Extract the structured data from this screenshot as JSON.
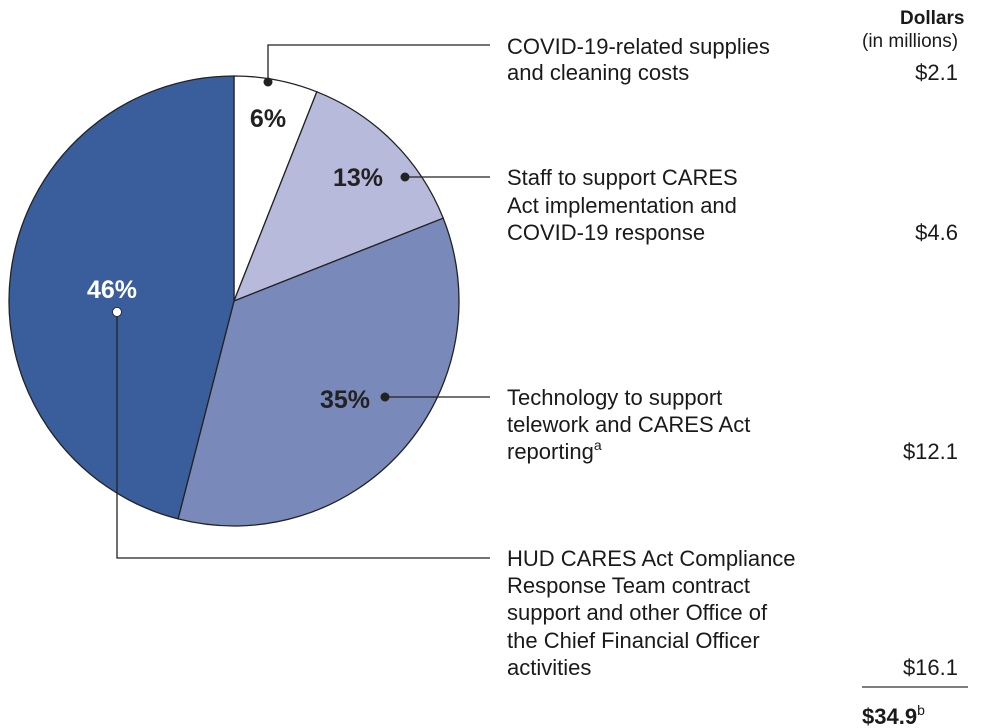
{
  "chart_data": {
    "type": "pie",
    "categories": [
      [
        "COVID-19-related supplies",
        "and cleaning costs"
      ],
      [
        "Staff to support CARES",
        "Act implementation and",
        "COVID-19 response"
      ],
      [
        "Technology to support",
        "telework and CARES Act",
        "reporting"
      ],
      [
        "HUD CARES Act Compliance",
        "Response Team contract",
        "support and other Office of",
        "the Chief Financial Officer",
        "activities"
      ]
    ],
    "category_notes": {
      "2": "a"
    },
    "values": [
      6,
      13,
      35,
      46
    ],
    "value_labels": [
      "6%",
      "13%",
      "35%",
      "46%"
    ],
    "colors": [
      "#ffffff",
      "#b8badc",
      "#7889ba",
      "#3a5e9c"
    ],
    "label_colors": [
      "#222222",
      "#222222",
      "#222222",
      "#ffffff"
    ],
    "amounts_header": [
      "Dollars",
      "(in millions)"
    ],
    "amount_labels": [
      "$2.1",
      "$4.6",
      "$12.1",
      "$16.1"
    ],
    "total_label": "$34.9",
    "total_note": "b"
  }
}
